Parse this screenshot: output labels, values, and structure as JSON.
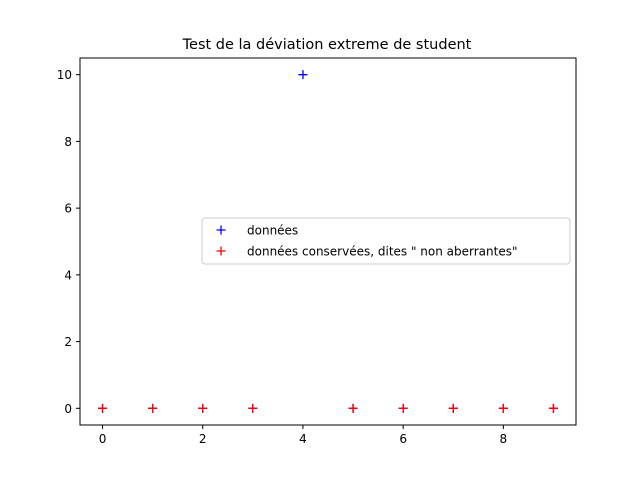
{
  "chart_data": {
    "type": "scatter",
    "title": "Test de la déviation extreme de student",
    "xlabel": "",
    "ylabel": "",
    "xlim": [
      -0.45,
      9.45
    ],
    "ylim": [
      -0.5,
      10.5
    ],
    "xticks": [
      0,
      2,
      4,
      6,
      8
    ],
    "yticks": [
      0,
      2,
      4,
      6,
      8,
      10
    ],
    "grid": false,
    "legend_position": "center-right",
    "marker": "+",
    "series": [
      {
        "name": "données",
        "color": "#0000ff",
        "points": [
          [
            0,
            0
          ],
          [
            1,
            0
          ],
          [
            2,
            0
          ],
          [
            3,
            0
          ],
          [
            4,
            10
          ],
          [
            5,
            0
          ],
          [
            6,
            0
          ],
          [
            7,
            0
          ],
          [
            8,
            0
          ],
          [
            9,
            0
          ]
        ]
      },
      {
        "name": "données conservées, dites \" non aberrantes\"",
        "color": "#ff0000",
        "points": [
          [
            0,
            0
          ],
          [
            1,
            0
          ],
          [
            2,
            0
          ],
          [
            3,
            0
          ],
          [
            5,
            0
          ],
          [
            6,
            0
          ],
          [
            7,
            0
          ],
          [
            8,
            0
          ],
          [
            9,
            0
          ]
        ]
      }
    ]
  }
}
